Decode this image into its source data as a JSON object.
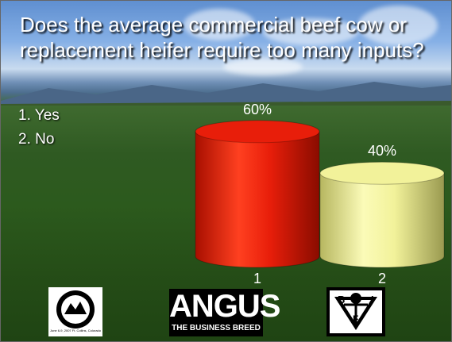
{
  "slide": {
    "title": "Does the average commercial beef cow or replacement heifer require too many inputs?",
    "options": [
      "1. Yes",
      "2. No"
    ]
  },
  "chart_data": {
    "type": "bar",
    "style": "3d-cylinder",
    "categories": [
      "1",
      "2"
    ],
    "values": [
      60,
      40
    ],
    "value_labels": [
      "60%",
      "40%"
    ],
    "colors": [
      "#e81e0a",
      "#f2f29a"
    ],
    "ylim": [
      0,
      100
    ]
  },
  "logos": {
    "left": {
      "name": "event-seal-logo",
      "text": "June 6-9, 2007 Ft. Collins, Colorado"
    },
    "center": {
      "name": "angus-logo",
      "word": "ANGUS",
      "tagline": "THE BUSINESS BREED"
    },
    "right": {
      "name": "bif-logo",
      "letters": [
        "B",
        "I",
        "F"
      ]
    }
  }
}
